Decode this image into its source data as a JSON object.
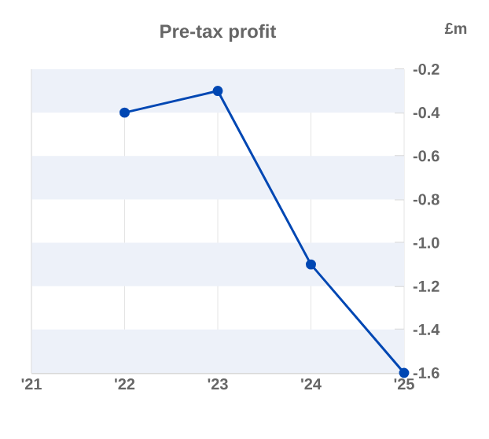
{
  "chart_data": {
    "type": "line",
    "title": "Pre-tax profit",
    "ylabel": "£m",
    "categories": [
      "'21",
      "'22",
      "'23",
      "'24",
      "'25"
    ],
    "series": [
      {
        "color": "#0047b3",
        "values": [
          null,
          -0.4,
          -0.3,
          -1.1,
          -1.6
        ]
      }
    ],
    "ylim": [
      -1.6,
      -0.2
    ],
    "yticks": [
      -0.2,
      -0.4,
      -0.6,
      -0.8,
      {
        "value": -1.0,
        "label": "-1.0"
      },
      -1.2,
      -1.4,
      -1.6
    ],
    "bands": [
      {
        "axis": "y",
        "from": -0.4,
        "to": -0.2,
        "color": "#edf1f9"
      },
      {
        "axis": "y",
        "from": -0.8,
        "to": -0.6,
        "color": "#edf1f9"
      },
      {
        "axis": "y",
        "from": -1.2,
        "to": -1.0,
        "color": "#edf1f9"
      },
      {
        "axis": "y",
        "from": -1.6,
        "to": -1.4,
        "color": "#edf1f9"
      }
    ],
    "grid": "x",
    "marker": "circle",
    "line_style": "solid"
  }
}
